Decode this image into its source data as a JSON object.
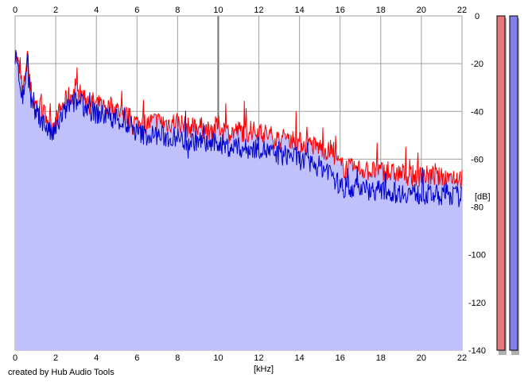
{
  "chart_data": {
    "type": "area",
    "xlabel": "[kHz]",
    "ylabel": "[dB]",
    "xlim": [
      0,
      22
    ],
    "ylim": [
      -140,
      0
    ],
    "x_ticks": [
      0,
      2,
      4,
      6,
      8,
      10,
      12,
      14,
      16,
      18,
      20,
      22
    ],
    "x_tick_labels": [
      "0",
      "2",
      "4",
      "6",
      "8",
      "10",
      "12",
      "14",
      "16",
      "18",
      "20",
      "22"
    ],
    "y_ticks": [
      0,
      -20,
      -40,
      -60,
      -80,
      -100,
      -120,
      -140
    ],
    "y_tick_labels": [
      "0",
      "-20",
      "-40",
      "-60",
      "-80",
      "-100",
      "-120",
      "-140"
    ],
    "grid": true,
    "series": [
      {
        "color": "#ff0000",
        "x": [
          0,
          0.2,
          0.4,
          0.6,
          0.7,
          0.9,
          1.2,
          1.5,
          1.8,
          2.0,
          2.3,
          2.6,
          3.0,
          3.3,
          3.6,
          4.0,
          4.5,
          5.0,
          5.5,
          6.0,
          6.5,
          7.0,
          7.5,
          8.0,
          8.5,
          9.0,
          9.5,
          10.0,
          10.5,
          11.0,
          11.5,
          12.0,
          12.5,
          13.0,
          13.5,
          14.0,
          14.5,
          15.0,
          15.5,
          15.7,
          16.0,
          16.5,
          17.0,
          17.5,
          18.0,
          18.5,
          19.0,
          19.5,
          20.0,
          20.5,
          21.0,
          21.5,
          22.0
        ],
        "values": [
          -15,
          -22,
          -32,
          -15,
          -28,
          -36,
          -38,
          -42,
          -46,
          -44,
          -38,
          -34,
          -32,
          -33,
          -35,
          -37,
          -38,
          -39,
          -42,
          -45,
          -45,
          -44,
          -45,
          -44,
          -47,
          -46,
          -48,
          -46,
          -49,
          -48,
          -49,
          -48,
          -50,
          -52,
          -51,
          -53,
          -54,
          -55,
          -57,
          -58,
          -63,
          -64,
          -64,
          -65,
          -65,
          -66,
          -66,
          -67,
          -67,
          -67,
          -68,
          -67,
          -68
        ]
      },
      {
        "color": "#0000cc",
        "x": [
          0,
          0.2,
          0.4,
          0.6,
          0.7,
          0.9,
          1.2,
          1.5,
          1.8,
          2.0,
          2.3,
          2.6,
          3.0,
          3.3,
          3.6,
          4.0,
          4.5,
          5.0,
          5.5,
          6.0,
          6.5,
          7.0,
          7.5,
          8.0,
          8.5,
          9.0,
          9.5,
          10.0,
          10.5,
          11.0,
          11.5,
          12.0,
          12.5,
          13.0,
          13.5,
          14.0,
          14.5,
          15.0,
          15.5,
          15.7,
          16.0,
          16.5,
          17.0,
          17.5,
          18.0,
          18.5,
          19.0,
          19.5,
          20.0,
          20.5,
          21.0,
          21.5,
          22.0
        ],
        "values": [
          -17,
          -26,
          -35,
          -18,
          -32,
          -40,
          -42,
          -46,
          -50,
          -48,
          -42,
          -38,
          -36,
          -37,
          -39,
          -41,
          -42,
          -43,
          -46,
          -49,
          -50,
          -50,
          -51,
          -51,
          -53,
          -52,
          -54,
          -53,
          -55,
          -55,
          -56,
          -55,
          -57,
          -59,
          -58,
          -60,
          -62,
          -63,
          -65,
          -67,
          -72,
          -72,
          -72,
          -73,
          -73,
          -74,
          -74,
          -74,
          -75,
          -75,
          -75,
          -75,
          -76
        ]
      }
    ]
  },
  "level_meters": [
    {
      "color": "#e87878"
    },
    {
      "color": "#8080e8"
    }
  ],
  "fill_color": "#c0c0fc",
  "credit": "created by Hub Audio Tools"
}
